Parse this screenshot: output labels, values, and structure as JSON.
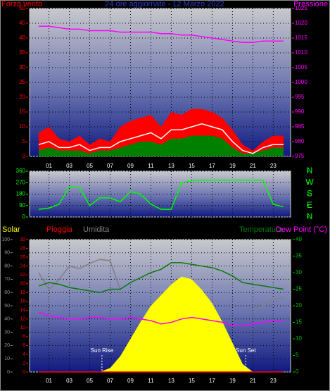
{
  "chart_data": [
    {
      "type": "line",
      "title": "24 ore aggiornate - 12 Marzo 2022",
      "ylabel": "Forza vento",
      "y2label": "Pressione",
      "x": [
        0,
        1,
        2,
        3,
        4,
        5,
        6,
        7,
        8,
        9,
        10,
        11,
        12,
        13,
        14,
        15,
        16,
        17,
        18,
        19,
        20,
        21,
        22,
        23,
        24
      ],
      "xlim": [
        -0.9,
        24.7
      ],
      "xticks": [
        {
          "value": 1,
          "label": "01"
        },
        {
          "value": 3,
          "label": "03"
        },
        {
          "value": 5,
          "label": "05"
        },
        {
          "value": 7,
          "label": "07"
        },
        {
          "value": 9,
          "label": "09"
        },
        {
          "value": 11,
          "label": "11"
        },
        {
          "value": 13,
          "label": "13"
        },
        {
          "value": 15,
          "label": "15"
        },
        {
          "value": 17,
          "label": "17"
        },
        {
          "value": 19,
          "label": "19"
        },
        {
          "value": 21,
          "label": "21"
        },
        {
          "value": 23,
          "label": "23"
        }
      ],
      "ylim": [
        0,
        50
      ],
      "yticks": [
        0,
        5,
        10,
        15,
        20,
        25,
        30,
        35,
        40,
        45,
        50
      ],
      "y2lim": [
        975,
        1025
      ],
      "y2ticks": [
        975,
        980,
        985,
        990,
        995,
        1000,
        1005,
        1010,
        1015,
        1020,
        1025
      ],
      "grid": true,
      "series": [
        {
          "color": "#ff0000",
          "style": "area",
          "values": [
            8,
            10,
            6,
            5,
            7,
            4,
            6,
            5,
            10,
            12,
            13,
            14,
            10,
            15,
            14,
            16,
            16,
            15,
            13,
            9,
            4,
            2,
            5,
            7,
            7
          ]
        },
        {
          "color": "#008000",
          "style": "area",
          "values": [
            2,
            3,
            2,
            2,
            2,
            1,
            2,
            2,
            3,
            4,
            5,
            5,
            4,
            6,
            6,
            7,
            7,
            7,
            6,
            3,
            1,
            1,
            2,
            3,
            3
          ]
        },
        {
          "color": "#ffffff",
          "style": "line",
          "values": [
            4,
            5,
            3,
            3,
            4,
            2,
            3,
            3,
            5,
            6,
            7,
            8,
            6,
            9,
            9,
            10,
            11,
            10,
            9,
            5,
            2,
            1,
            3,
            4,
            4
          ]
        },
        {
          "color": "#ff00ff",
          "style": "line",
          "axis": "y2",
          "values": [
            1019,
            1019,
            1018.5,
            1018,
            1018,
            1017.5,
            1017.5,
            1017.5,
            1017,
            1017,
            1017,
            1017,
            1016.5,
            1016.5,
            1016,
            1016,
            1015.5,
            1015,
            1014.5,
            1014,
            1013.5,
            1013.5,
            1014,
            1014,
            1014
          ]
        }
      ]
    },
    {
      "type": "line",
      "x": [
        0,
        1,
        2,
        3,
        4,
        5,
        6,
        7,
        8,
        9,
        10,
        11,
        12,
        13,
        14,
        15,
        16,
        17,
        18,
        19,
        20,
        21,
        22,
        23,
        24
      ],
      "xlim": [
        -0.9,
        24.7
      ],
      "xticks": [
        1,
        3,
        5,
        7,
        9,
        11,
        13,
        15,
        17,
        19,
        21,
        23
      ],
      "ylim": [
        0,
        360
      ],
      "yticks": [
        0,
        90,
        180,
        270,
        360
      ],
      "y2lim": [
        0,
        360
      ],
      "y2ticks": [
        {
          "value": 0,
          "label": "N"
        },
        {
          "value": 90,
          "label": "E"
        },
        {
          "value": 180,
          "label": "S"
        },
        {
          "value": 270,
          "label": "W"
        },
        {
          "value": 360,
          "label": "N"
        }
      ],
      "grid": true,
      "series": [
        {
          "color": "#00ff00",
          "style": "line",
          "values": [
            60,
            70,
            100,
            240,
            230,
            90,
            150,
            150,
            120,
            200,
            180,
            100,
            60,
            60,
            270,
            285,
            290,
            290,
            290,
            290,
            290,
            290,
            290,
            100,
            80
          ]
        }
      ]
    },
    {
      "type": "line",
      "x": [
        0,
        1,
        2,
        3,
        4,
        5,
        6,
        7,
        8,
        9,
        10,
        11,
        12,
        13,
        14,
        15,
        16,
        17,
        18,
        19,
        20,
        21,
        22,
        23,
        24
      ],
      "xlim": [
        -0.9,
        24.7
      ],
      "xticks": [
        {
          "value": 1,
          "label": "01"
        },
        {
          "value": 3,
          "label": "03"
        },
        {
          "value": 5,
          "label": "05"
        },
        {
          "value": 7,
          "label": "07"
        },
        {
          "value": 9,
          "label": "09"
        },
        {
          "value": 11,
          "label": "11"
        },
        {
          "value": 13,
          "label": "13"
        },
        {
          "value": 15,
          "label": "15"
        },
        {
          "value": 17,
          "label": "17"
        },
        {
          "value": 19,
          "label": "19"
        },
        {
          "value": 21,
          "label": "21"
        },
        {
          "value": 23,
          "label": "23"
        }
      ],
      "ylim": [
        0,
        100
      ],
      "yticks": [
        0,
        10,
        20,
        30,
        40,
        50,
        60,
        70,
        80,
        90,
        100
      ],
      "y3lim": [
        0,
        30
      ],
      "y3ticks": [
        0,
        2,
        4,
        6,
        8,
        10,
        12,
        14,
        16,
        18,
        20,
        22,
        24,
        26,
        28,
        30
      ],
      "y2lim": [
        0,
        40
      ],
      "y2ticks": [
        0,
        5,
        10,
        15,
        20,
        25,
        30,
        35,
        40
      ],
      "grid": true,
      "annotations": [
        {
          "text": "Sun Rise",
          "x": 6.2
        },
        {
          "text": "Sun Set",
          "x": 20.3
        }
      ],
      "series": [
        {
          "name": "Solar",
          "color": "#ffff00",
          "style": "area",
          "values": [
            0,
            0,
            0,
            0,
            0,
            0,
            0,
            3,
            12,
            25,
            38,
            50,
            58,
            66,
            72,
            70,
            62,
            52,
            38,
            22,
            6,
            0,
            0,
            0,
            0
          ]
        },
        {
          "name": "Pioggia",
          "color": "#ff0000",
          "style": "line",
          "axis": "y3",
          "values": [
            0,
            0,
            0,
            0,
            0,
            0,
            0,
            0,
            0,
            0,
            0,
            0,
            0,
            0,
            0,
            0,
            0,
            0,
            0,
            0,
            0,
            0,
            0,
            0,
            0
          ]
        },
        {
          "name": "Umidita",
          "color": "#808080",
          "style": "line",
          "values": [
            75,
            62,
            70,
            80,
            78,
            82,
            85,
            84,
            62,
            null,
            null,
            null,
            null,
            null,
            null,
            null,
            null,
            null,
            null,
            null,
            null,
            45,
            50,
            55,
            56
          ]
        },
        {
          "name": "Temperatura",
          "color": "#0a7a0a",
          "style": "line",
          "axis": "y2",
          "values": [
            26,
            27,
            26.5,
            25.5,
            25,
            24.5,
            24,
            25,
            25,
            27,
            28.5,
            30,
            31,
            33,
            33,
            32.5,
            32,
            31.5,
            30.5,
            29,
            27,
            26.5,
            26,
            25.5,
            25
          ]
        },
        {
          "name": "Dew Point (°C)",
          "color": "#ff00ff",
          "style": "line",
          "axis": "y2",
          "values": [
            18,
            17,
            16.5,
            16,
            16,
            16.5,
            16.5,
            16,
            16,
            16.5,
            16,
            15.5,
            14.5,
            15,
            16,
            16.5,
            16,
            15.5,
            15,
            14,
            14,
            14.5,
            15,
            15.5,
            15.5
          ]
        }
      ]
    }
  ]
}
